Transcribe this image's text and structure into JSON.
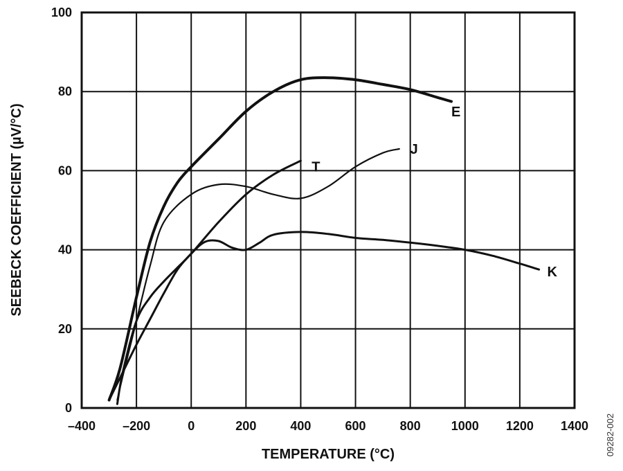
{
  "chart_data": {
    "type": "line",
    "title": "",
    "xlabel": "TEMPERATURE (°C)",
    "ylabel": "SEEBECK COEFFICIENT (µV/°C)",
    "xlim": [
      -400,
      1400
    ],
    "ylim": [
      0,
      100
    ],
    "xticks": [
      "–400",
      "–200",
      "0",
      "200",
      "400",
      "600",
      "800",
      "1000",
      "1200",
      "1400"
    ],
    "yticks": [
      "0",
      "20",
      "40",
      "60",
      "80",
      "100"
    ],
    "grid": true,
    "figure_id": "09282-002",
    "series": [
      {
        "name": "E",
        "x": [
          -300,
          -260,
          -200,
          -150,
          -100,
          -50,
          0,
          100,
          200,
          300,
          400,
          500,
          600,
          700,
          800,
          900,
          950
        ],
        "y": [
          2,
          10,
          28,
          42,
          51,
          57,
          61,
          68,
          75,
          80,
          83,
          83.5,
          83,
          81.8,
          80.5,
          78.5,
          77.5
        ]
      },
      {
        "name": "J",
        "x": [
          -270,
          -250,
          -200,
          -150,
          -100,
          0,
          100,
          200,
          300,
          400,
          500,
          600,
          700,
          760
        ],
        "y": [
          2,
          8,
          22,
          36,
          47,
          54,
          56.5,
          56,
          54,
          53,
          56,
          61,
          64.5,
          65.5
        ]
      },
      {
        "name": "T",
        "x": [
          -270,
          -250,
          -200,
          -150,
          -100,
          -50,
          0,
          100,
          200,
          300,
          400
        ],
        "y": [
          1,
          9,
          22,
          28,
          32,
          35.5,
          39,
          47,
          54,
          59,
          62.5
        ]
      },
      {
        "name": "K",
        "x": [
          -300,
          -250,
          -200,
          -150,
          -100,
          -50,
          0,
          50,
          100,
          150,
          200,
          250,
          300,
          400,
          500,
          600,
          700,
          800,
          900,
          1000,
          1100,
          1200,
          1270
        ],
        "y": [
          2,
          9,
          16,
          22.5,
          29,
          35,
          39,
          42,
          42.2,
          40.5,
          40,
          41.8,
          43.8,
          44.5,
          44,
          43,
          42.5,
          41.8,
          41,
          40,
          38.5,
          36.5,
          35
        ]
      }
    ],
    "label_positions": {
      "E": [
        950,
        75
      ],
      "J": [
        800,
        65.5
      ],
      "T": [
        440,
        61
      ],
      "K": [
        1300,
        34.5
      ]
    },
    "line_widths": {
      "E": 4,
      "J": 2.2,
      "T": 3,
      "K": 3
    }
  }
}
